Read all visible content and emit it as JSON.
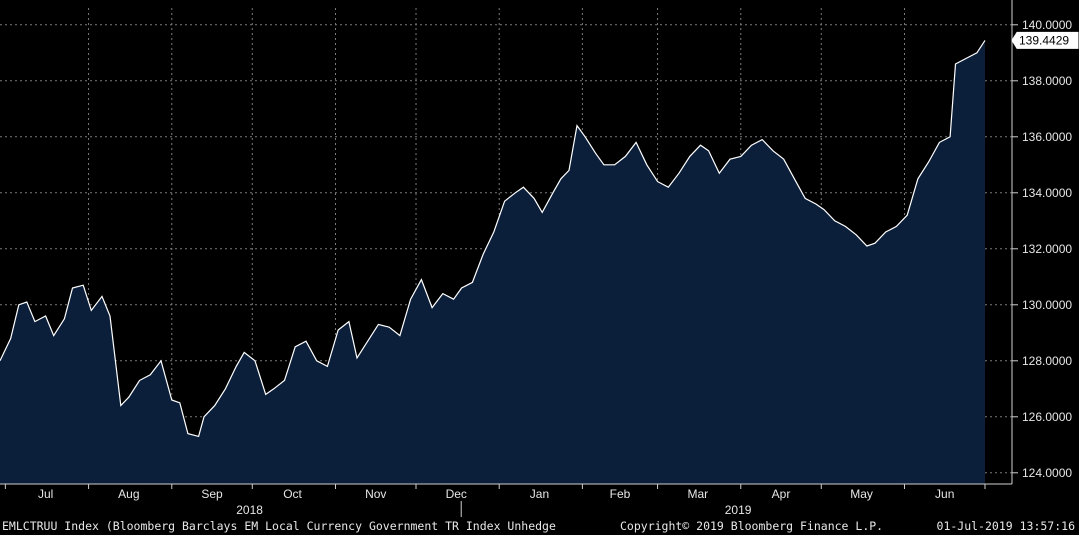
{
  "chart_data": {
    "type": "area",
    "ticker": "EMLCTRUU Index",
    "last_value_label": "139.4429",
    "ylim": [
      123.6,
      140.6
    ],
    "yticks": [
      "124.0000",
      "126.0000",
      "128.0000",
      "130.0000",
      "132.0000",
      "134.0000",
      "136.0000",
      "138.0000",
      "140.0000"
    ],
    "ytick_values": [
      124,
      126,
      128,
      130,
      132,
      134,
      136,
      138,
      140
    ],
    "months": [
      "Jul",
      "Aug",
      "Sep",
      "Oct",
      "Nov",
      "Dec",
      "Jan",
      "Feb",
      "Mar",
      "Apr",
      "May",
      "Jun"
    ],
    "years": [
      "2018",
      "2019"
    ],
    "grid": true,
    "colors": {
      "background": "#000000",
      "fill": "#0b1f3a",
      "line": "#ffffff",
      "grid": "#7a7a7a"
    },
    "x_start": "2018-06-29",
    "x_end": "2019-07-01",
    "series": [
      {
        "points": [
          [
            "2018-06-29",
            128.0
          ],
          [
            "2018-07-03",
            128.8
          ],
          [
            "2018-07-06",
            130.0
          ],
          [
            "2018-07-09",
            130.1
          ],
          [
            "2018-07-12",
            129.4
          ],
          [
            "2018-07-16",
            129.6
          ],
          [
            "2018-07-19",
            128.9
          ],
          [
            "2018-07-23",
            129.5
          ],
          [
            "2018-07-26",
            130.6
          ],
          [
            "2018-07-30",
            130.7
          ],
          [
            "2018-08-02",
            129.8
          ],
          [
            "2018-08-06",
            130.3
          ],
          [
            "2018-08-09",
            129.6
          ],
          [
            "2018-08-13",
            126.4
          ],
          [
            "2018-08-16",
            126.7
          ],
          [
            "2018-08-20",
            127.3
          ],
          [
            "2018-08-24",
            127.5
          ],
          [
            "2018-08-28",
            128.0
          ],
          [
            "2018-09-01",
            126.6
          ],
          [
            "2018-09-04",
            126.5
          ],
          [
            "2018-09-07",
            125.4
          ],
          [
            "2018-09-11",
            125.3
          ],
          [
            "2018-09-13",
            126.0
          ],
          [
            "2018-09-17",
            126.4
          ],
          [
            "2018-09-21",
            127.0
          ],
          [
            "2018-09-25",
            127.8
          ],
          [
            "2018-09-28",
            128.3
          ],
          [
            "2018-10-02",
            128.0
          ],
          [
            "2018-10-06",
            126.8
          ],
          [
            "2018-10-09",
            127.0
          ],
          [
            "2018-10-13",
            127.3
          ],
          [
            "2018-10-17",
            128.5
          ],
          [
            "2018-10-21",
            128.7
          ],
          [
            "2018-10-25",
            128.0
          ],
          [
            "2018-10-29",
            127.8
          ],
          [
            "2018-11-02",
            129.1
          ],
          [
            "2018-11-06",
            129.4
          ],
          [
            "2018-11-09",
            128.1
          ],
          [
            "2018-11-13",
            128.7
          ],
          [
            "2018-11-17",
            129.3
          ],
          [
            "2018-11-21",
            129.2
          ],
          [
            "2018-11-25",
            128.9
          ],
          [
            "2018-11-29",
            130.2
          ],
          [
            "2018-12-03",
            130.9
          ],
          [
            "2018-12-07",
            129.9
          ],
          [
            "2018-12-11",
            130.4
          ],
          [
            "2018-12-15",
            130.2
          ],
          [
            "2018-12-18",
            130.6
          ],
          [
            "2018-12-22",
            130.8
          ],
          [
            "2018-12-26",
            131.8
          ],
          [
            "2018-12-30",
            132.6
          ],
          [
            "2019-01-03",
            133.7
          ],
          [
            "2019-01-07",
            134.0
          ],
          [
            "2019-01-10",
            134.2
          ],
          [
            "2019-01-14",
            133.8
          ],
          [
            "2019-01-17",
            133.3
          ],
          [
            "2019-01-21",
            134.0
          ],
          [
            "2019-01-24",
            134.5
          ],
          [
            "2019-01-27",
            134.8
          ],
          [
            "2019-01-30",
            136.4
          ],
          [
            "2019-02-02",
            136.0
          ],
          [
            "2019-02-06",
            135.4
          ],
          [
            "2019-02-09",
            135.0
          ],
          [
            "2019-02-13",
            135.0
          ],
          [
            "2019-02-17",
            135.3
          ],
          [
            "2019-02-21",
            135.8
          ],
          [
            "2019-02-25",
            135.0
          ],
          [
            "2019-03-01",
            134.4
          ],
          [
            "2019-03-05",
            134.2
          ],
          [
            "2019-03-09",
            134.7
          ],
          [
            "2019-03-13",
            135.3
          ],
          [
            "2019-03-17",
            135.7
          ],
          [
            "2019-03-20",
            135.5
          ],
          [
            "2019-03-24",
            134.7
          ],
          [
            "2019-03-28",
            135.2
          ],
          [
            "2019-04-01",
            135.3
          ],
          [
            "2019-04-05",
            135.7
          ],
          [
            "2019-04-09",
            135.9
          ],
          [
            "2019-04-13",
            135.5
          ],
          [
            "2019-04-17",
            135.2
          ],
          [
            "2019-04-21",
            134.5
          ],
          [
            "2019-04-25",
            133.8
          ],
          [
            "2019-04-29",
            133.6
          ],
          [
            "2019-05-02",
            133.4
          ],
          [
            "2019-05-06",
            133.0
          ],
          [
            "2019-05-10",
            132.8
          ],
          [
            "2019-05-14",
            132.5
          ],
          [
            "2019-05-18",
            132.1
          ],
          [
            "2019-05-21",
            132.2
          ],
          [
            "2019-05-25",
            132.6
          ],
          [
            "2019-05-29",
            132.8
          ],
          [
            "2019-06-02",
            133.2
          ],
          [
            "2019-06-06",
            134.5
          ],
          [
            "2019-06-10",
            135.1
          ],
          [
            "2019-06-14",
            135.8
          ],
          [
            "2019-06-18",
            136.0
          ],
          [
            "2019-06-20",
            138.6
          ],
          [
            "2019-06-24",
            138.8
          ],
          [
            "2019-06-28",
            139.0
          ],
          [
            "2019-07-01",
            139.4429
          ]
        ]
      }
    ]
  },
  "footer": {
    "left": "EMLCTRUU Index (Bloomberg Barclays EM Local Currency Government TR Index Unhedge",
    "center": "Copyright© 2019 Bloomberg Finance L.P.",
    "right": "01-Jul-2019 13:57:16"
  }
}
